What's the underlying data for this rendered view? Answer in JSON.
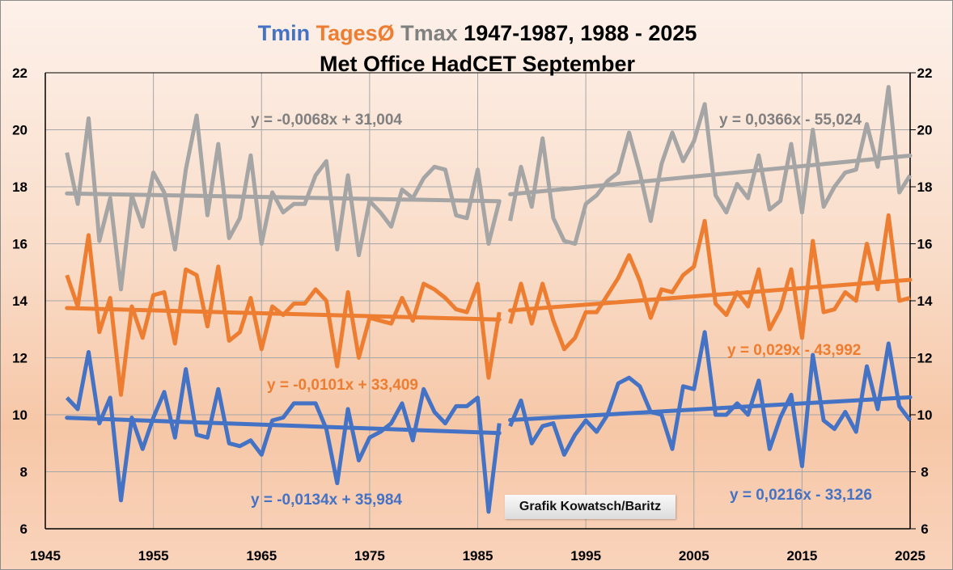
{
  "chart_data": {
    "type": "line",
    "title": {
      "segments": [
        {
          "text": "Tmin ",
          "color": "#4472c4"
        },
        {
          "text": "TagesØ ",
          "color": "#ed7d31"
        },
        {
          "text": "Tmax ",
          "color": "#808080"
        },
        {
          "text": "1947-1987, 1988 - 2025",
          "color": "#000000"
        }
      ],
      "line2": "Met Office HadCET September"
    },
    "xlabel": "",
    "ylabel": "",
    "xlim": [
      1945,
      2025
    ],
    "ylim": [
      6,
      22
    ],
    "x_ticks": [
      1945,
      1955,
      1965,
      1975,
      1985,
      1995,
      2005,
      2015,
      2025
    ],
    "y_ticks": [
      6,
      8,
      10,
      12,
      14,
      16,
      18,
      20,
      22
    ],
    "y_axis_both_sides": true,
    "grid": true,
    "credit": "Grafik Kowatsch/Baritz",
    "periods": [
      {
        "start": 1947,
        "end": 1987
      },
      {
        "start": 1988,
        "end": 2025
      }
    ],
    "series": [
      {
        "name": "Tmax",
        "color": "#a5a5a5",
        "segments": [
          {
            "start": 1947,
            "values": [
              19.2,
              17.4,
              20.4,
              16.1,
              17.6,
              14.4,
              17.7,
              16.6,
              18.5,
              17.8,
              15.8,
              18.6,
              20.5,
              17.0,
              19.5,
              16.2,
              16.9,
              19.1,
              16.0,
              17.8,
              17.1,
              17.4,
              17.4,
              18.4,
              18.9,
              15.8,
              18.4,
              15.6,
              17.5,
              17.1,
              16.6,
              17.9,
              17.6,
              18.3,
              18.7,
              18.6,
              17.0,
              16.9,
              18.6,
              16.0,
              17.5
            ]
          },
          {
            "start": 1988,
            "values": [
              16.8,
              18.7,
              17.3,
              19.7,
              16.9,
              16.1,
              16.0,
              17.4,
              17.7,
              18.2,
              18.5,
              19.9,
              18.5,
              16.8,
              18.8,
              19.9,
              18.9,
              19.6,
              20.9,
              17.7,
              17.1,
              18.1,
              17.6,
              19.1,
              17.2,
              17.5,
              19.5,
              17.1,
              20.0,
              17.3,
              18.0,
              18.5,
              18.6,
              20.2,
              18.7,
              21.5,
              17.8,
              18.4
            ]
          }
        ],
        "trendlines": [
          {
            "label": "y = -0,0068x + 31,004",
            "slope": -0.0068,
            "intercept": 31.004,
            "from": 1947,
            "to": 1987
          },
          {
            "label": "y = 0,0366x - 55,024",
            "slope": 0.0366,
            "intercept": -55.024,
            "from": 1988,
            "to": 2025
          }
        ]
      },
      {
        "name": "TagesØ",
        "color": "#ed7d31",
        "segments": [
          {
            "start": 1947,
            "values": [
              14.9,
              13.8,
              16.3,
              12.9,
              14.1,
              10.7,
              13.8,
              12.7,
              14.2,
              14.3,
              12.5,
              15.1,
              14.9,
              13.1,
              15.2,
              12.6,
              12.9,
              14.1,
              12.3,
              13.8,
              13.5,
              13.9,
              13.9,
              14.4,
              14.0,
              11.7,
              14.3,
              12.0,
              13.4,
              13.3,
              13.2,
              14.1,
              13.3,
              14.6,
              14.4,
              14.1,
              13.7,
              13.6,
              14.6,
              11.3,
              13.6
            ]
          },
          {
            "start": 1988,
            "values": [
              13.2,
              14.6,
              13.2,
              14.6,
              13.3,
              12.3,
              12.7,
              13.6,
              13.6,
              14.2,
              14.8,
              15.6,
              14.7,
              13.4,
              14.4,
              14.3,
              14.9,
              15.2,
              16.8,
              13.9,
              13.5,
              14.3,
              13.8,
              15.1,
              13.0,
              13.7,
              15.1,
              12.7,
              16.1,
              13.6,
              13.7,
              14.3,
              14.0,
              16.0,
              14.4,
              17.0,
              14.0,
              14.1
            ]
          }
        ],
        "trendlines": [
          {
            "label": "y = -0,0101x + 33,409",
            "slope": -0.0101,
            "intercept": 33.409,
            "from": 1947,
            "to": 1987
          },
          {
            "label": "y = 0,029x - 43,992",
            "slope": 0.029,
            "intercept": -43.992,
            "from": 1988,
            "to": 2025
          }
        ]
      },
      {
        "name": "Tmin",
        "color": "#4472c4",
        "segments": [
          {
            "start": 1947,
            "values": [
              10.6,
              10.2,
              12.2,
              9.7,
              10.6,
              7.0,
              9.9,
              8.8,
              9.9,
              10.8,
              9.2,
              11.6,
              9.3,
              9.2,
              10.9,
              9.0,
              8.9,
              9.1,
              8.6,
              9.8,
              9.9,
              10.4,
              10.4,
              10.4,
              9.5,
              7.6,
              10.2,
              8.4,
              9.2,
              9.4,
              9.7,
              10.4,
              9.1,
              10.9,
              10.1,
              9.7,
              10.3,
              10.3,
              10.6,
              6.6,
              9.7
            ]
          },
          {
            "start": 1988,
            "values": [
              9.6,
              10.5,
              9.0,
              9.6,
              9.7,
              8.6,
              9.3,
              9.8,
              9.4,
              10.0,
              11.1,
              11.3,
              11.0,
              10.1,
              10.0,
              8.8,
              11.0,
              10.9,
              12.9,
              10.0,
              10.0,
              10.4,
              10.0,
              11.2,
              8.8,
              9.9,
              10.7,
              8.2,
              12.1,
              9.8,
              9.5,
              10.1,
              9.4,
              11.7,
              10.2,
              12.5,
              10.3,
              9.8
            ]
          }
        ],
        "trendlines": [
          {
            "label": "y = -0,0134x + 35,984",
            "slope": -0.0134,
            "intercept": 35.984,
            "from": 1947,
            "to": 1987
          },
          {
            "label": "y = 0,0216x - 33,126",
            "slope": 0.0216,
            "intercept": -33.126,
            "from": 1988,
            "to": 2025
          }
        ]
      }
    ]
  }
}
